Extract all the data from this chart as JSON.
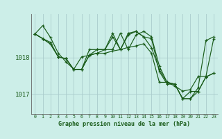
{
  "background_color": "#cceee8",
  "grid_color": "#aacccc",
  "line_color": "#1a5c1a",
  "xlabel": "Graphe pression niveau de la mer (hPa)",
  "ytick_labels": [
    "1017",
    "1018"
  ],
  "ytick_values": [
    1017.0,
    1018.0
  ],
  "ylim": [
    1016.45,
    1019.2
  ],
  "xlim": [
    -0.5,
    23.5
  ],
  "xtick_values": [
    0,
    1,
    2,
    3,
    4,
    5,
    6,
    7,
    8,
    9,
    10,
    11,
    12,
    13,
    14,
    15,
    16,
    17,
    18,
    19,
    20,
    21,
    22,
    23
  ],
  "series": [
    [
      1018.65,
      1018.88,
      1018.55,
      1018.12,
      1017.88,
      1017.68,
      1018.02,
      1018.06,
      1018.12,
      1018.12,
      1018.18,
      1018.22,
      1018.28,
      1018.32,
      1018.38,
      1018.12,
      1017.32,
      1017.32,
      1017.22,
      1017.08,
      1017.12,
      1017.48,
      1017.48,
      1018.52
    ],
    [
      1018.65,
      1018.52,
      1018.42,
      1018.02,
      1017.97,
      1017.67,
      1017.67,
      1018.07,
      1018.12,
      1018.22,
      1018.57,
      1018.22,
      1018.67,
      1018.72,
      1018.57,
      1018.52,
      1017.62,
      1017.27,
      1017.27,
      1016.87,
      1016.87,
      1017.17,
      1018.47,
      1018.57
    ],
    [
      1018.65,
      1018.52,
      1018.37,
      1018.02,
      1017.97,
      1017.67,
      1017.67,
      1018.07,
      1018.22,
      1018.22,
      1018.22,
      1018.67,
      1018.22,
      1018.62,
      1018.72,
      1018.57,
      1017.77,
      1017.32,
      1017.27,
      1016.87,
      1016.87,
      1017.07,
      1017.47,
      1017.57
    ],
    [
      1018.65,
      1018.52,
      1018.37,
      1018.02,
      1017.97,
      1017.67,
      1017.67,
      1018.22,
      1018.22,
      1018.22,
      1018.67,
      1018.22,
      1018.62,
      1018.72,
      1018.57,
      1018.27,
      1017.67,
      1017.32,
      1017.27,
      1016.87,
      1017.07,
      1017.07,
      1017.47,
      1017.57
    ]
  ]
}
